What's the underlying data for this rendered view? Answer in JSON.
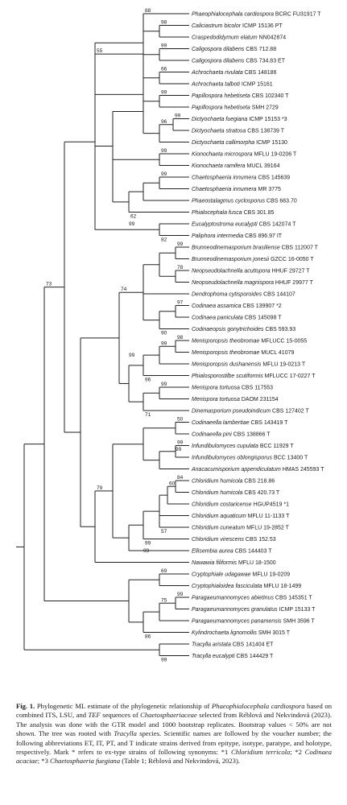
{
  "tree": {
    "taxa": [
      {
        "name": "Phaeophialocephala cardiospora",
        "strain": "BCRC FU31917 T"
      },
      {
        "name": "Caliciastrum bicolor",
        "strain": "ICMP 15136 PT"
      },
      {
        "name": "Craspedodidymum elatum",
        "strain": "NN042874"
      },
      {
        "name": "Caligospora dilabens",
        "strain": "CBS 712.88"
      },
      {
        "name": "Caligospora dilabens",
        "strain": "CBS 734.83 ET"
      },
      {
        "name": "Achrochaeta rivulata",
        "strain": "CBS 148186"
      },
      {
        "name": "Achrochaeta talboti",
        "strain": "ICMP 15161"
      },
      {
        "name": "Papillospora hebetiseta",
        "strain": "CBS 102340 T"
      },
      {
        "name": "Papillospora hebetiseta",
        "strain": "SMH 2729"
      },
      {
        "name": "Dictyochaeta fuegiana",
        "strain": "ICMP 15153 *3"
      },
      {
        "name": "Dictyochaeta stratosa",
        "strain": "CBS 138739 T"
      },
      {
        "name": "Dictyochaeta callimorpha",
        "strain": "ICMP 15130"
      },
      {
        "name": "Kionochaeta microspora",
        "strain": "MFLU 19-0206 T"
      },
      {
        "name": "Kionochaeta ramifera",
        "strain": "MUCL 39164"
      },
      {
        "name": "Chaetosphaeria innumera",
        "strain": "CBS 145639"
      },
      {
        "name": "Chaetosphaeria innumera",
        "strain": "MR 3775"
      },
      {
        "name": "Phaeostalagmus cyclosporus",
        "strain": "CBS 663.70"
      },
      {
        "name": "Phialocephala fusca",
        "strain": "CBS 301.85"
      },
      {
        "name": "Eucalyptostroma eucalypti",
        "strain": "CBS 142074 T"
      },
      {
        "name": "Paliphora intermedia",
        "strain": "CBS 896.97 IT"
      },
      {
        "name": "Brunneodinemasporium brasiliense",
        "strain": "CBS 112007 T"
      },
      {
        "name": "Brunneodinemasporium jonesii",
        "strain": "GZCC 16-0050 T"
      },
      {
        "name": "Neopseudolachnella acutispora",
        "strain": "HHUF 29727 T"
      },
      {
        "name": "Neopseudolachnella magnispora",
        "strain": "HHUF 29977 T"
      },
      {
        "name": "Dendrophoma cytisporoides",
        "strain": "CBS 144107"
      },
      {
        "name": "Codinaea assamica",
        "strain": "CBS 139907 *2"
      },
      {
        "name": "Codinaea paniculata",
        "strain": "CBS 145098 T"
      },
      {
        "name": "Codinaeopsis gonytrichoides",
        "strain": "CBS 593.93"
      },
      {
        "name": "Menisporopsis theobromae",
        "strain": "MFLUCC 15-0055"
      },
      {
        "name": "Menisporopsis theobromae",
        "strain": "MUCL 41079"
      },
      {
        "name": "Menisporopsis dushanensis",
        "strain": "MFLU 19-0213 T"
      },
      {
        "name": "Phialosporostilbe scutiformis",
        "strain": "MFLUCC 17-0227 T"
      },
      {
        "name": "Menispora tortuosa",
        "strain": "CBS 117553"
      },
      {
        "name": "Menispora tortuosa",
        "strain": "DAOM 231154"
      },
      {
        "name": "Dinemasporium pseudoindicum",
        "strain": "CBS 127402 T"
      },
      {
        "name": "Codinaeella lambertiae",
        "strain": "CBS 143419 T"
      },
      {
        "name": "Codinaeella pini",
        "strain": "CBS 138866 T"
      },
      {
        "name": "Infundibulomyces cupulata",
        "strain": "BCC 11929 T"
      },
      {
        "name": "Infundibulomyces oblongisporus",
        "strain": "BCC 13400 T"
      },
      {
        "name": "Anacacumisporium appendiculatum",
        "strain": "HMAS 245593 T"
      },
      {
        "name": "Chloridium humicola",
        "strain": "CBS 218.86"
      },
      {
        "name": "Chloridium humicola",
        "strain": "CBS 420.73 T"
      },
      {
        "name": "Chloridium costaricense",
        "strain": "HGUP4519 *1"
      },
      {
        "name": "Chloridium aquaticum",
        "strain": "MFLU 11-1133 T"
      },
      {
        "name": "Chloridium cuneatum",
        "strain": "MFLU 19-2852 T"
      },
      {
        "name": "Chloridium virescens",
        "strain": "CBS 152.53"
      },
      {
        "name": "Ellisembia aurea",
        "strain": "CBS 144403 T"
      },
      {
        "name": "Nawawia filiformis",
        "strain": "MFLU 18-1500"
      },
      {
        "name": "Cryptophiale udagawae",
        "strain": "MFLU 19-0209"
      },
      {
        "name": "Cryptophialoidea fasciculata",
        "strain": "MFLU 18-1499"
      },
      {
        "name": "Paragaeumannomyces abietinus",
        "strain": "CBS 145351 T"
      },
      {
        "name": "Paragaeumannomyces granulatus",
        "strain": "ICMP 15133 T"
      },
      {
        "name": "Paragaeumannomyces panamensis",
        "strain": "SMH 3596 T"
      },
      {
        "name": "Kylindrochaeta lignomollis",
        "strain": "SMH 3015 T"
      },
      {
        "name": "Tracylla aristata",
        "strain": "CBS 141404 ET"
      },
      {
        "name": "Tracylla eucalypti",
        "strain": "CBS 144429 T"
      }
    ],
    "bootstrap": [
      "88",
      "98",
      "99",
      "66",
      "99",
      "99",
      "96",
      "99",
      "99",
      "55",
      "62",
      "99",
      "82",
      "99",
      "78",
      "99",
      "74",
      "97",
      "99",
      "90",
      "98",
      "99",
      "96",
      "99",
      "71",
      "79",
      "50",
      "99",
      "84",
      "60",
      "57",
      "99",
      "99",
      "73",
      "69",
      "99",
      "75",
      "86",
      "99"
    ]
  },
  "caption": {
    "label": "Fig. 1.",
    "s1": "Phylogenetic ML estimate of the phylogenetic relationship of ",
    "s1_i": "Phaeophialocephala cardiospora",
    "s2": " based on combined ITS, LSU, and ",
    "s2_i": "TEF",
    "s3": " sequences of ",
    "s3_i": "Chaetosphaeriaceae",
    "s4": " selected from Réblová and Nekvindová (2023). The analysis was done with the GTR model and 1000 bootstrap replicates. Bootstrap values < 50% are not shown. The tree was rooted with ",
    "s4_i": "Tracylla",
    "s5": " species. Scientific names are followed by the voucher number; the following abbreviations ET, IT, PT, and T indicate strains derived from epitype, isotype, paratype, and holotype, respectively. Mark * refers to ex-type strains of following synonyms: *1 ",
    "s5_i": "Chloridium terricola",
    "s6": "; *2 ",
    "s6_i": "Codinaea acaciae",
    "s7": "; *3 ",
    "s7_i": "Chaetosphaeria fuegiana",
    "s8": " (Table 1; Réblová and Nekvindová, 2023)."
  }
}
